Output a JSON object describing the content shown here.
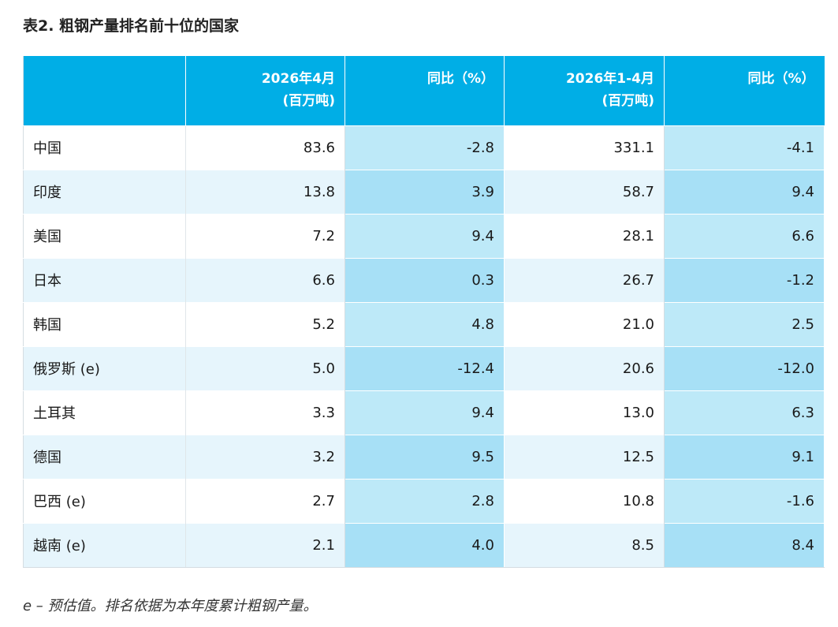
{
  "title": "表2. 粗钢产量排名前十位的国家",
  "headers": [
    {
      "line1": "",
      "line2": ""
    },
    {
      "line1": "2026年4月",
      "line2": "(百万吨)"
    },
    {
      "line1": "同比（%）",
      "line2": ""
    },
    {
      "line1": "2026年1-4月",
      "line2": "(百万吨)"
    },
    {
      "line1": "同比（%）",
      "line2": ""
    }
  ],
  "rows": [
    {
      "country": "中国",
      "apr": "83.6",
      "apr_yoy": "-2.8",
      "ytd": "331.1",
      "ytd_yoy": "-4.1"
    },
    {
      "country": "印度",
      "apr": "13.8",
      "apr_yoy": "3.9",
      "ytd": "58.7",
      "ytd_yoy": "9.4"
    },
    {
      "country": "美国",
      "apr": "7.2",
      "apr_yoy": "9.4",
      "ytd": "28.1",
      "ytd_yoy": "6.6"
    },
    {
      "country": "日本",
      "apr": "6.6",
      "apr_yoy": "0.3",
      "ytd": "26.7",
      "ytd_yoy": "-1.2"
    },
    {
      "country": "韩国",
      "apr": "5.2",
      "apr_yoy": "4.8",
      "ytd": "21.0",
      "ytd_yoy": "2.5"
    },
    {
      "country": "俄罗斯 (e)",
      "apr": "5.0",
      "apr_yoy": "-12.4",
      "ytd": "20.6",
      "ytd_yoy": "-12.0"
    },
    {
      "country": "土耳其",
      "apr": "3.3",
      "apr_yoy": "9.4",
      "ytd": "13.0",
      "ytd_yoy": "6.3"
    },
    {
      "country": "德国",
      "apr": "3.2",
      "apr_yoy": "9.5",
      "ytd": "12.5",
      "ytd_yoy": "9.1"
    },
    {
      "country": "巴西 (e)",
      "apr": "2.7",
      "apr_yoy": "2.8",
      "ytd": "10.8",
      "ytd_yoy": "-1.6"
    },
    {
      "country": "越南 (e)",
      "apr": "2.1",
      "apr_yoy": "4.0",
      "ytd": "8.5",
      "ytd_yoy": "8.4"
    }
  ],
  "footnote": "e – 预估值。排名依据为本年度累计粗钢产量。",
  "colors": {
    "header_bg": "#00aee6",
    "row_light": "#ffffff",
    "row_tint": "#e6f5fc",
    "yoy_light": "#bde9f8",
    "yoy_dark": "#a7e0f6"
  }
}
